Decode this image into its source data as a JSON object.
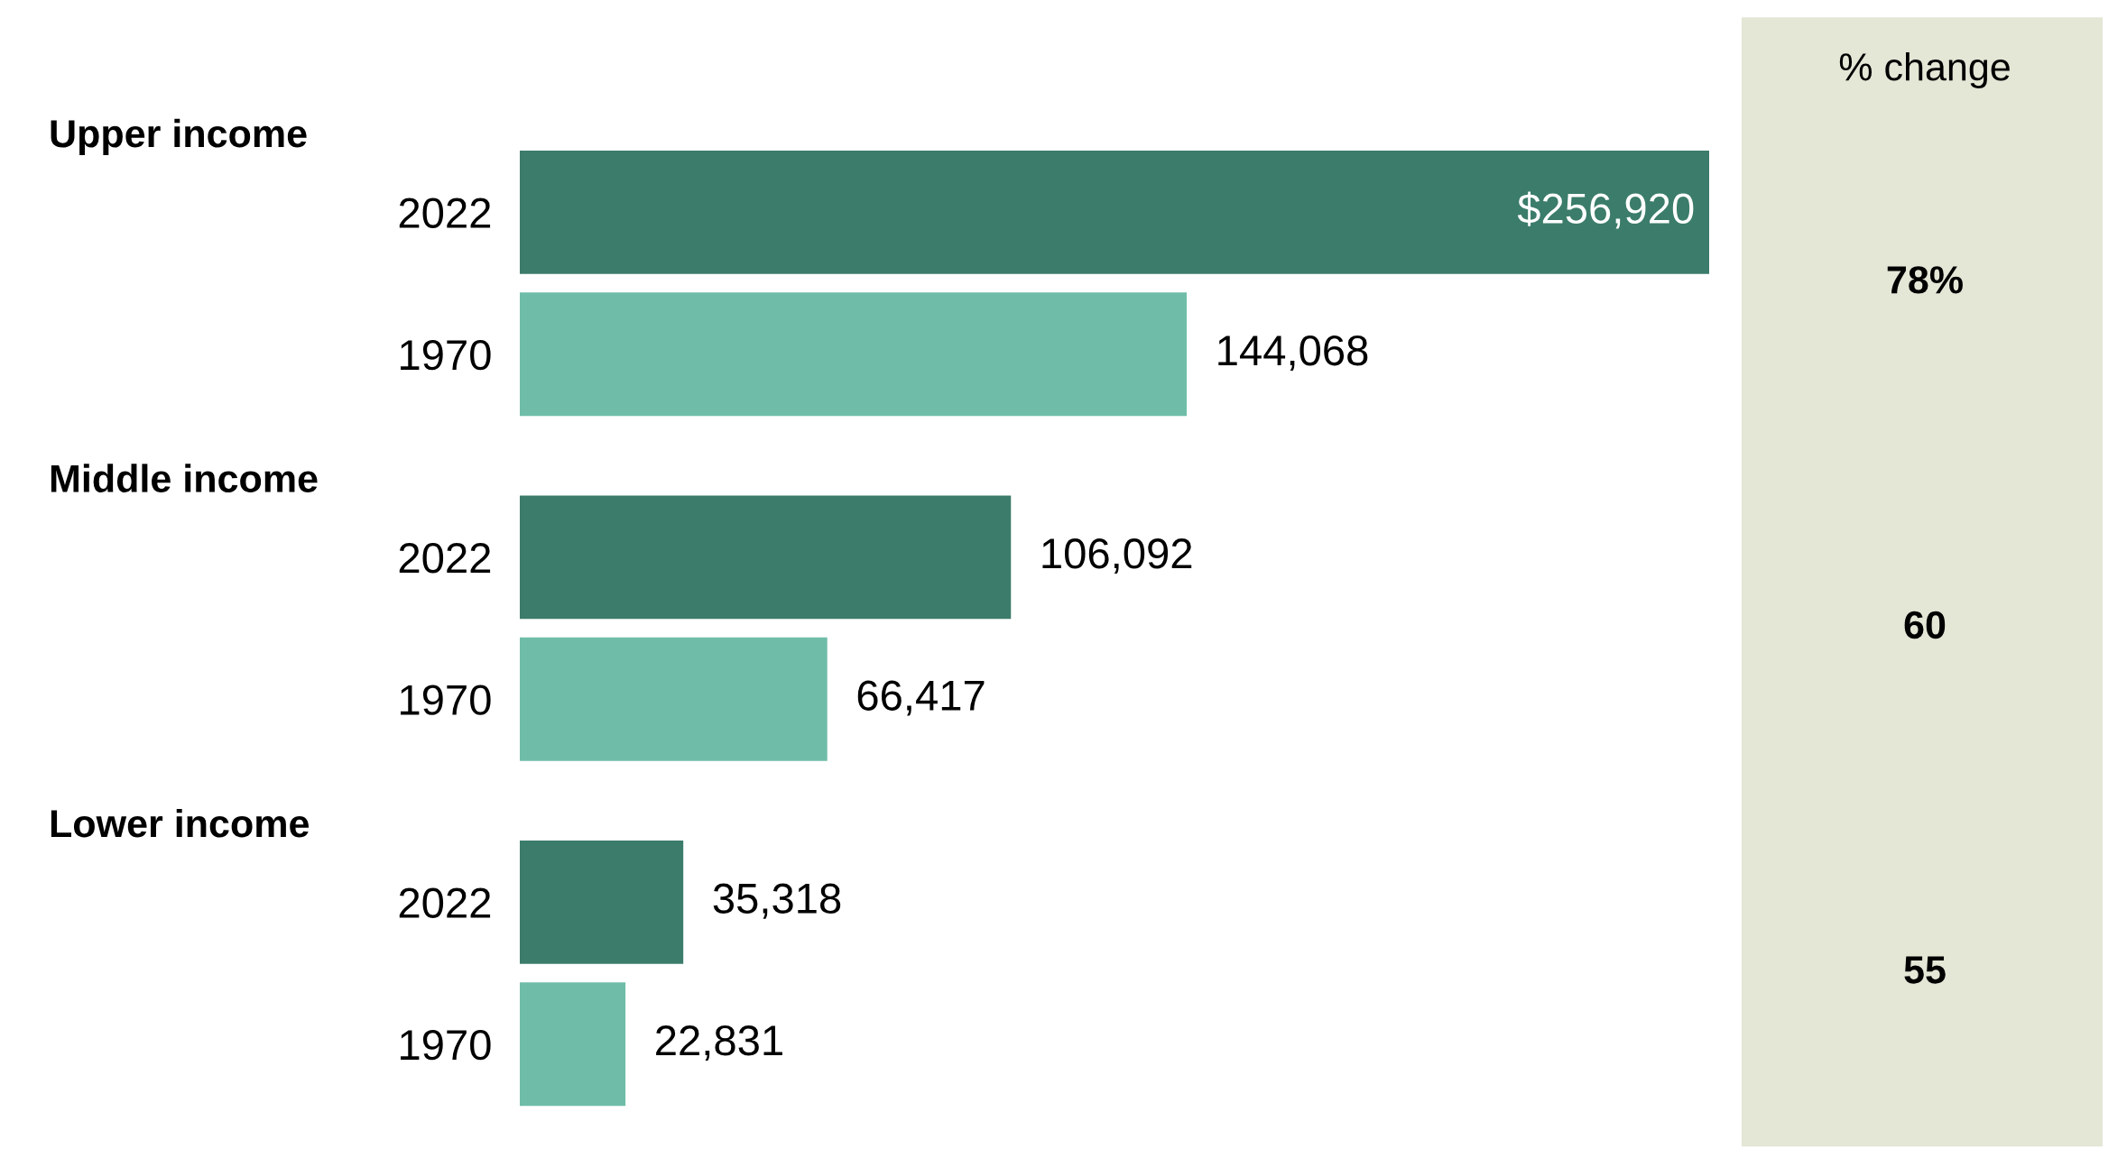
{
  "chart_data": {
    "type": "bar",
    "orientation": "horizontal",
    "categories": [
      "2022",
      "1970",
      "2022",
      "1970",
      "2022",
      "1970"
    ],
    "values": [
      256920,
      144068,
      106092,
      66417,
      35318,
      22831
    ],
    "colors": [
      "#3b7c6a",
      "#6fbda9",
      "#3b7c6a",
      "#6fbda9",
      "#3b7c6a",
      "#6fbda9"
    ],
    "value_labels": [
      "$256,920",
      "144,068",
      "106,092",
      "66,417",
      "35,318",
      "22,831"
    ],
    "annotations": [
      "Upper income",
      "Middle income",
      "Lower income",
      "% change",
      "78%",
      "60",
      "55"
    ],
    "grid": false,
    "legend": false
  }
}
